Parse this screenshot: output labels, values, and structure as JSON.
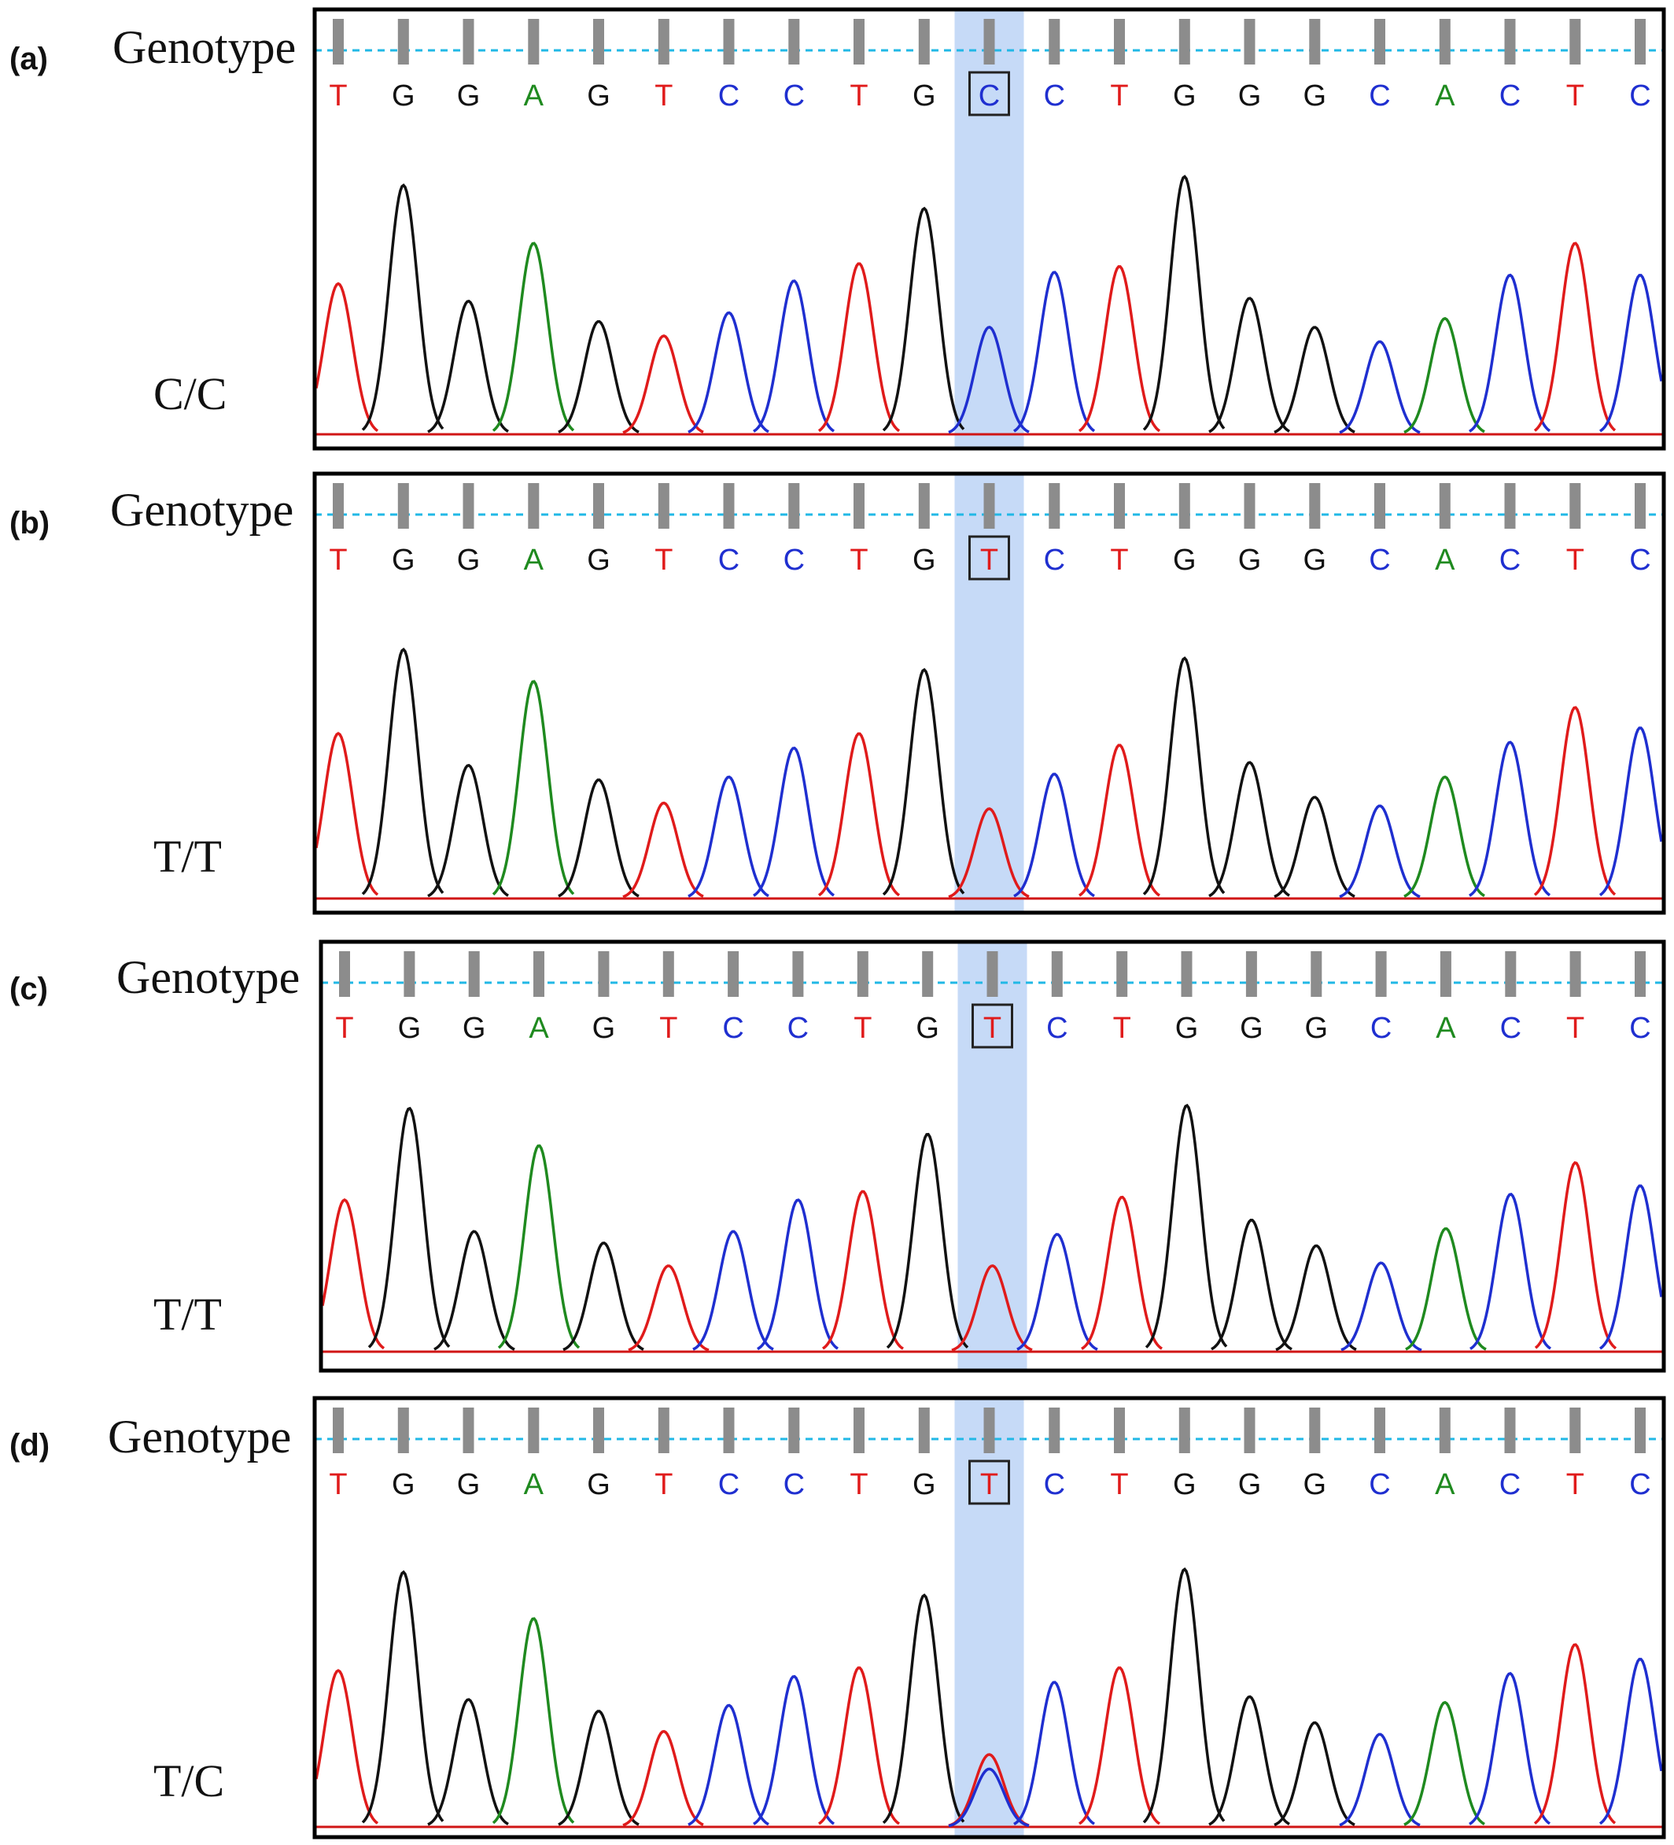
{
  "figure": {
    "row_label": "Genotype",
    "sequence": [
      "T",
      "G",
      "G",
      "A",
      "G",
      "T",
      "C",
      "C",
      "T",
      "G",
      "C",
      "C",
      "T",
      "G",
      "G",
      "G",
      "C",
      "A",
      "C",
      "T",
      "C"
    ],
    "highlight_index": 10,
    "colors": {
      "T": "#e01b1b",
      "G": "#111111",
      "A": "#1f8a1f",
      "C": "#1f2fd0",
      "highlight": "#a8c6f2",
      "marker": "#8c8c8c",
      "guide_line": "#21b8e6",
      "frame": "#000000"
    }
  },
  "chart_data": [
    {
      "type": "line",
      "panel": "(a)",
      "genotype": "C/C",
      "called_bases": [
        "T",
        "G",
        "G",
        "A",
        "G",
        "T",
        "C",
        "C",
        "T",
        "G",
        "C",
        "C",
        "T",
        "G",
        "G",
        "G",
        "C",
        "A",
        "C",
        "T",
        "C"
      ],
      "peaks": [
        {
          "base": "T",
          "height": 0.52
        },
        {
          "base": "G",
          "height": 0.86
        },
        {
          "base": "G",
          "height": 0.46
        },
        {
          "base": "A",
          "height": 0.66
        },
        {
          "base": "G",
          "height": 0.39
        },
        {
          "base": "T",
          "height": 0.34
        },
        {
          "base": "C",
          "height": 0.42
        },
        {
          "base": "C",
          "height": 0.53
        },
        {
          "base": "T",
          "height": 0.59
        },
        {
          "base": "G",
          "height": 0.78
        },
        {
          "base": "C",
          "height": 0.37
        },
        {
          "base": "C",
          "height": 0.56
        },
        {
          "base": "T",
          "height": 0.58
        },
        {
          "base": "G",
          "height": 0.89
        },
        {
          "base": "G",
          "height": 0.47
        },
        {
          "base": "G",
          "height": 0.37
        },
        {
          "base": "C",
          "height": 0.32
        },
        {
          "base": "A",
          "height": 0.4
        },
        {
          "base": "C",
          "height": 0.55
        },
        {
          "base": "T",
          "height": 0.66
        },
        {
          "base": "C",
          "height": 0.55
        }
      ]
    },
    {
      "type": "line",
      "panel": "(b)",
      "genotype": "T/T",
      "called_bases": [
        "T",
        "G",
        "G",
        "A",
        "G",
        "T",
        "C",
        "C",
        "T",
        "G",
        "T",
        "C",
        "T",
        "G",
        "G",
        "G",
        "C",
        "A",
        "C",
        "T",
        "C"
      ],
      "peaks": [
        {
          "base": "T",
          "height": 0.57
        },
        {
          "base": "G",
          "height": 0.86
        },
        {
          "base": "G",
          "height": 0.46
        },
        {
          "base": "A",
          "height": 0.75
        },
        {
          "base": "G",
          "height": 0.41
        },
        {
          "base": "T",
          "height": 0.33
        },
        {
          "base": "C",
          "height": 0.42
        },
        {
          "base": "C",
          "height": 0.52
        },
        {
          "base": "T",
          "height": 0.57
        },
        {
          "base": "G",
          "height": 0.79
        },
        {
          "base": "T",
          "height": 0.31
        },
        {
          "base": "C",
          "height": 0.43
        },
        {
          "base": "T",
          "height": 0.53
        },
        {
          "base": "G",
          "height": 0.83
        },
        {
          "base": "G",
          "height": 0.47
        },
        {
          "base": "G",
          "height": 0.35
        },
        {
          "base": "C",
          "height": 0.32
        },
        {
          "base": "A",
          "height": 0.42
        },
        {
          "base": "C",
          "height": 0.54
        },
        {
          "base": "T",
          "height": 0.66
        },
        {
          "base": "C",
          "height": 0.59
        }
      ]
    },
    {
      "type": "line",
      "panel": "(c)",
      "genotype": "T/T",
      "called_bases": [
        "T",
        "G",
        "G",
        "A",
        "G",
        "T",
        "C",
        "C",
        "T",
        "G",
        "T",
        "C",
        "T",
        "G",
        "G",
        "G",
        "C",
        "A",
        "C",
        "T",
        "C"
      ],
      "peaks": [
        {
          "base": "T",
          "height": 0.53
        },
        {
          "base": "G",
          "height": 0.85
        },
        {
          "base": "G",
          "height": 0.42
        },
        {
          "base": "A",
          "height": 0.72
        },
        {
          "base": "G",
          "height": 0.38
        },
        {
          "base": "T",
          "height": 0.3
        },
        {
          "base": "C",
          "height": 0.42
        },
        {
          "base": "C",
          "height": 0.53
        },
        {
          "base": "T",
          "height": 0.56
        },
        {
          "base": "G",
          "height": 0.76
        },
        {
          "base": "T",
          "height": 0.3
        },
        {
          "base": "C",
          "height": 0.41
        },
        {
          "base": "T",
          "height": 0.54
        },
        {
          "base": "G",
          "height": 0.86
        },
        {
          "base": "G",
          "height": 0.46
        },
        {
          "base": "G",
          "height": 0.37
        },
        {
          "base": "C",
          "height": 0.31
        },
        {
          "base": "A",
          "height": 0.43
        },
        {
          "base": "C",
          "height": 0.55
        },
        {
          "base": "T",
          "height": 0.66
        },
        {
          "base": "C",
          "height": 0.58
        }
      ]
    },
    {
      "type": "line",
      "panel": "(d)",
      "genotype": "T/C",
      "called_bases": [
        "T",
        "G",
        "G",
        "A",
        "G",
        "T",
        "C",
        "C",
        "T",
        "G",
        "T",
        "C",
        "T",
        "G",
        "G",
        "G",
        "C",
        "A",
        "C",
        "T",
        "C"
      ],
      "heterozygous_index": 10,
      "heterozygous_peaks": [
        {
          "base": "T",
          "height": 0.25
        },
        {
          "base": "C",
          "height": 0.2
        }
      ],
      "peaks": [
        {
          "base": "T",
          "height": 0.54
        },
        {
          "base": "G",
          "height": 0.88
        },
        {
          "base": "G",
          "height": 0.44
        },
        {
          "base": "A",
          "height": 0.72
        },
        {
          "base": "G",
          "height": 0.4
        },
        {
          "base": "T",
          "height": 0.33
        },
        {
          "base": "C",
          "height": 0.42
        },
        {
          "base": "C",
          "height": 0.52
        },
        {
          "base": "T",
          "height": 0.55
        },
        {
          "base": "G",
          "height": 0.8
        },
        {
          "base": "T",
          "height": 0.25
        },
        {
          "base": "C",
          "height": 0.5
        },
        {
          "base": "T",
          "height": 0.55
        },
        {
          "base": "G",
          "height": 0.89
        },
        {
          "base": "G",
          "height": 0.45
        },
        {
          "base": "G",
          "height": 0.36
        },
        {
          "base": "C",
          "height": 0.32
        },
        {
          "base": "A",
          "height": 0.43
        },
        {
          "base": "C",
          "height": 0.53
        },
        {
          "base": "T",
          "height": 0.63
        },
        {
          "base": "C",
          "height": 0.58
        }
      ]
    }
  ]
}
